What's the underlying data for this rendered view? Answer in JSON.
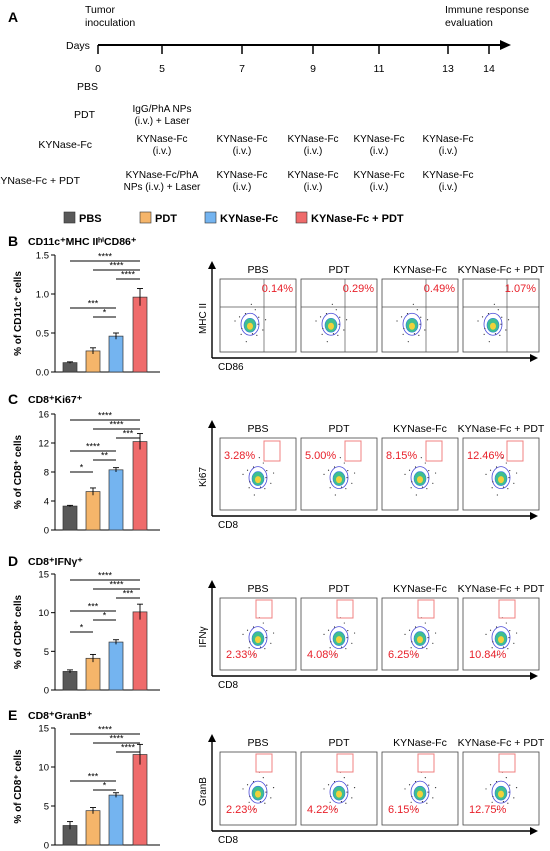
{
  "panel_letters": [
    "A",
    "B",
    "C",
    "D",
    "E"
  ],
  "timeline": {
    "start_label": "Tumor\ninoculation",
    "end_label": "Immune response\nevaluation",
    "axis_label": "Days",
    "days": [
      "0",
      "5",
      "7",
      "9",
      "11",
      "13",
      "14"
    ],
    "groups": [
      {
        "name": "PBS",
        "treatments": [
          "",
          "",
          "",
          "",
          "",
          ""
        ]
      },
      {
        "name": "PDT",
        "treatments": [
          "IgG/PhA NPs\n(i.v.) + Laser",
          "",
          "",
          "",
          "",
          ""
        ]
      },
      {
        "name": "KYNase-Fc",
        "treatments": [
          "KYNase-Fc\n(i.v.)",
          "KYNase-Fc\n(i.v.)",
          "KYNase-Fc\n(i.v.)",
          "KYNase-Fc\n(i.v.)",
          "KYNase-Fc\n(i.v.)",
          ""
        ]
      },
      {
        "name": "KYNase-Fc + PDT",
        "treatments": [
          "KYNase-Fc/PhA\nNPs (i.v.) + Laser",
          "KYNase-Fc\n(i.v.)",
          "KYNase-Fc\n(i.v.)",
          "KYNase-Fc\n(i.v.)",
          "KYNase-Fc\n(i.v.)",
          ""
        ]
      }
    ]
  },
  "legend": [
    {
      "label": "PBS",
      "color": "#595959"
    },
    {
      "label": "PDT",
      "color": "#f5b56a"
    },
    {
      "label": "KYNase-Fc",
      "color": "#74b4f0"
    },
    {
      "label": "KYNase-Fc + PDT",
      "color": "#ef6b6b"
    }
  ],
  "colors": {
    "accent_red": "#e8202a",
    "gate": "#f08080"
  },
  "chart_data": [
    {
      "type": "bar",
      "panel": "B",
      "title": "CD11c⁺MHC IIʰⁱCD86⁺",
      "ylabel": "% of CD11c⁺ cells",
      "ylim": [
        0,
        1.5
      ],
      "yticks": [
        "0.0",
        "0.5",
        "1.0",
        "1.5"
      ],
      "categories": [
        "PBS",
        "PDT",
        "KYNase-Fc",
        "KYNase-Fc + PDT"
      ],
      "values": [
        0.12,
        0.27,
        0.46,
        0.96
      ],
      "errors": [
        0.01,
        0.04,
        0.04,
        0.11
      ],
      "significance": [
        "****",
        "****",
        "****",
        "***",
        "*"
      ],
      "flow": {
        "xlabel": "CD86",
        "ylabel": "MHC II",
        "groups": [
          "PBS",
          "PDT",
          "KYNase-Fc",
          "KYNase-Fc + PDT"
        ],
        "percentages": [
          "0.14%",
          "0.29%",
          "0.49%",
          "1.07%"
        ]
      }
    },
    {
      "type": "bar",
      "panel": "C",
      "title": "CD8⁺Ki67⁺",
      "ylabel": "% of CD8⁺ cells",
      "ylim": [
        0,
        16
      ],
      "yticks": [
        "0",
        "4",
        "8",
        "12",
        "16"
      ],
      "categories": [
        "PBS",
        "PDT",
        "KYNase-Fc",
        "KYNase-Fc + PDT"
      ],
      "values": [
        3.3,
        5.3,
        8.3,
        12.2
      ],
      "errors": [
        0.1,
        0.5,
        0.3,
        1.1
      ],
      "significance": [
        "****",
        "****",
        "***",
        "****",
        "**",
        "*"
      ],
      "flow": {
        "xlabel": "CD8",
        "ylabel": "Ki67",
        "groups": [
          "PBS",
          "PDT",
          "KYNase-Fc",
          "KYNase-Fc + PDT"
        ],
        "percentages": [
          "3.28%",
          "5.00%",
          "8.15%",
          "12.46%"
        ]
      }
    },
    {
      "type": "bar",
      "panel": "D",
      "title": "CD8⁺IFNγ⁺",
      "ylabel": "% of CD8⁺ cells",
      "ylim": [
        0,
        15
      ],
      "yticks": [
        "0",
        "5",
        "10",
        "15"
      ],
      "categories": [
        "PBS",
        "PDT",
        "KYNase-Fc",
        "KYNase-Fc + PDT"
      ],
      "values": [
        2.4,
        4.1,
        6.2,
        10.1
      ],
      "errors": [
        0.2,
        0.5,
        0.3,
        1.0
      ],
      "significance": [
        "****",
        "****",
        "***",
        "***",
        "*",
        "*"
      ],
      "flow": {
        "xlabel": "CD8",
        "ylabel": "IFNγ",
        "groups": [
          "PBS",
          "PDT",
          "KYNase-Fc",
          "KYNase-Fc + PDT"
        ],
        "percentages": [
          "2.33%",
          "4.08%",
          "6.25%",
          "10.84%"
        ]
      }
    },
    {
      "type": "bar",
      "panel": "E",
      "title": "CD8⁺GranB⁺",
      "ylabel": "% of CD8⁺ cells",
      "ylim": [
        0,
        15
      ],
      "yticks": [
        "0",
        "5",
        "10",
        "15"
      ],
      "categories": [
        "PBS",
        "PDT",
        "KYNase-Fc",
        "KYNase-Fc + PDT"
      ],
      "values": [
        2.5,
        4.4,
        6.4,
        11.6
      ],
      "errors": [
        0.5,
        0.4,
        0.3,
        1.3
      ],
      "significance": [
        "****",
        "****",
        "****",
        "***",
        "*"
      ],
      "flow": {
        "xlabel": "CD8",
        "ylabel": "GranB",
        "groups": [
          "PBS",
          "PDT",
          "KYNase-Fc",
          "KYNase-Fc + PDT"
        ],
        "percentages": [
          "2.23%",
          "4.22%",
          "6.15%",
          "12.75%"
        ]
      }
    }
  ]
}
